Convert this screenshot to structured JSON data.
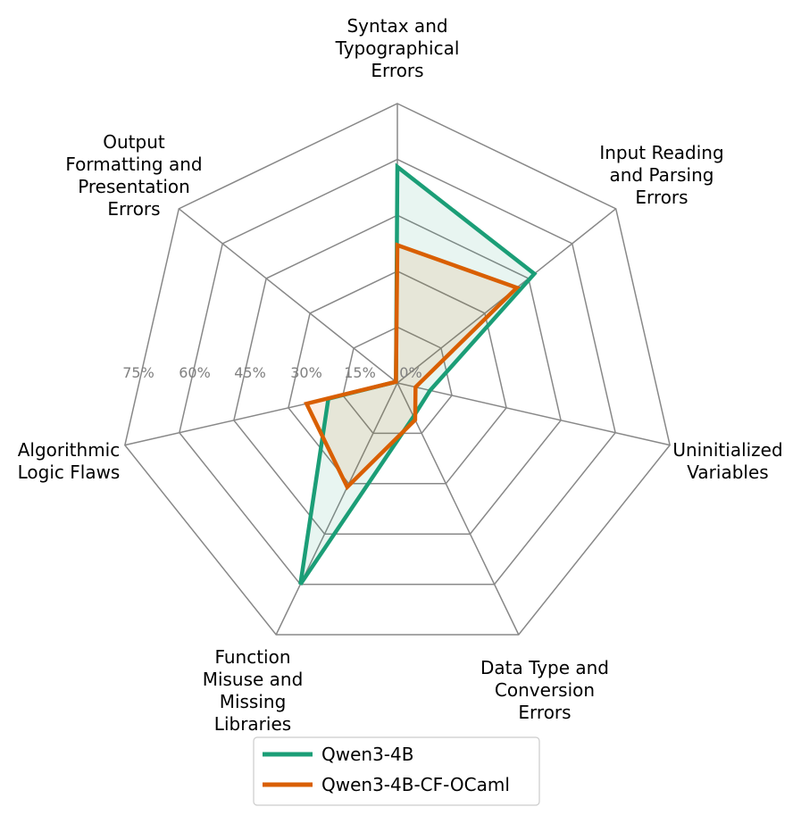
{
  "chart_data": {
    "type": "radar",
    "title": "",
    "categories": [
      [
        "Syntax and",
        "Typographical",
        "Errors"
      ],
      [
        "Input Reading",
        "and Parsing",
        "Errors"
      ],
      [
        "Uninitialized",
        "Variables"
      ],
      [
        "Data Type and",
        "Conversion",
        "Errors"
      ],
      [
        "Function",
        "Misuse and",
        "Missing",
        "Libraries"
      ],
      [
        "Algorithmic",
        "Logic Flaws"
      ],
      [
        "Output",
        "Formatting and",
        "Presentation",
        "Errors"
      ]
    ],
    "ticks": [
      0,
      15,
      30,
      45,
      60,
      75
    ],
    "tick_labels": [
      "0%",
      "15%",
      "30%",
      "45%",
      "60%",
      "75%"
    ],
    "range": [
      0,
      75
    ],
    "grid": true,
    "series": [
      {
        "name": "Qwen3-4B",
        "color": "#1b9e77",
        "values": [
          58,
          47,
          9,
          10,
          60,
          19,
          0.5
        ]
      },
      {
        "name": "Qwen3-4B-CF-OCaml",
        "color": "#d95f02",
        "values": [
          37,
          41,
          5,
          11,
          31,
          25,
          0.5
        ]
      }
    ],
    "legend_position": "bottom-center"
  }
}
